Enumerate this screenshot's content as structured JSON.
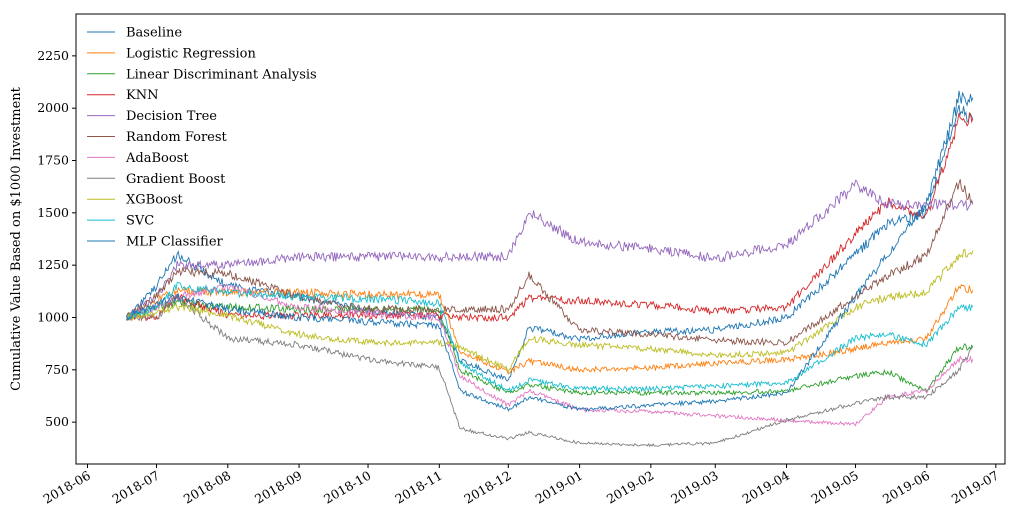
{
  "chart_data": {
    "type": "line",
    "title": "",
    "xlabel": "",
    "ylabel": "Cumulative Value Based on $1000 Investment",
    "xlim": [
      "2018-05-27",
      "2019-07-05"
    ],
    "ylim": [
      300,
      2450
    ],
    "x_ticks": [
      "2018-06-01",
      "2018-07-01",
      "2018-08-01",
      "2018-09-01",
      "2018-10-01",
      "2018-11-01",
      "2018-12-01",
      "2019-01-01",
      "2019-02-01",
      "2019-03-01",
      "2019-04-01",
      "2019-05-01",
      "2019-06-01",
      "2019-07-01"
    ],
    "x_tick_labels": [
      "2018-06",
      "2018-07",
      "2018-08",
      "2018-09",
      "2018-10",
      "2018-11",
      "2018-12",
      "2019-01",
      "2019-02",
      "2019-03",
      "2019-04",
      "2019-05",
      "2019-06",
      "2019-07"
    ],
    "y_ticks": [
      500,
      750,
      1000,
      1250,
      1500,
      1750,
      2000,
      2250
    ],
    "y_tick_labels": [
      "500",
      "750",
      "1000",
      "1250",
      "1500",
      "1750",
      "2000",
      "2250"
    ],
    "grid": false,
    "legend_position": "top-left",
    "series": [
      {
        "name": "Baseline",
        "color": "#1f77b4",
        "x": [
          "2018-06-18",
          "2018-07-01",
          "2018-07-10",
          "2018-08-01",
          "2018-09-01",
          "2018-10-01",
          "2018-11-01",
          "2018-11-10",
          "2018-12-01",
          "2018-12-10",
          "2019-01-01",
          "2019-02-01",
          "2019-03-01",
          "2019-04-01",
          "2019-05-01",
          "2019-05-15",
          "2019-06-01",
          "2019-06-15",
          "2019-06-21"
        ],
        "y": [
          1000,
          1150,
          1300,
          1150,
          1100,
          1030,
          1000,
          800,
          700,
          950,
          900,
          930,
          940,
          1000,
          1300,
          1450,
          1500,
          2000,
          1950
        ]
      },
      {
        "name": "Logistic Regression",
        "color": "#ff7f0e",
        "x": [
          "2018-06-18",
          "2018-07-01",
          "2018-07-10",
          "2018-08-01",
          "2018-09-01",
          "2018-10-01",
          "2018-11-01",
          "2018-11-10",
          "2018-12-01",
          "2018-12-10",
          "2019-01-01",
          "2019-02-01",
          "2019-03-01",
          "2019-04-01",
          "2019-05-01",
          "2019-05-15",
          "2019-06-01",
          "2019-06-15",
          "2019-06-21"
        ],
        "y": [
          1000,
          1080,
          1130,
          1120,
          1120,
          1110,
          1110,
          840,
          740,
          790,
          750,
          760,
          780,
          800,
          850,
          880,
          900,
          1150,
          1130
        ]
      },
      {
        "name": "Linear Discriminant Analysis",
        "color": "#2ca02c",
        "x": [
          "2018-06-18",
          "2018-07-01",
          "2018-07-10",
          "2018-08-01",
          "2018-09-01",
          "2018-10-01",
          "2018-11-01",
          "2018-11-10",
          "2018-12-01",
          "2018-12-10",
          "2019-01-01",
          "2019-02-01",
          "2019-03-01",
          "2019-04-01",
          "2019-05-01",
          "2019-05-15",
          "2019-06-01",
          "2019-06-15",
          "2019-06-21"
        ],
        "y": [
          1000,
          1050,
          1070,
          1050,
          1040,
          1040,
          1040,
          750,
          640,
          680,
          640,
          640,
          640,
          650,
          720,
          740,
          650,
          860,
          860
        ]
      },
      {
        "name": "KNN",
        "color": "#d62728",
        "x": [
          "2018-06-18",
          "2018-07-01",
          "2018-07-10",
          "2018-08-01",
          "2018-09-01",
          "2018-10-01",
          "2018-11-01",
          "2018-11-10",
          "2018-12-01",
          "2018-12-10",
          "2019-01-01",
          "2019-02-01",
          "2019-03-01",
          "2019-04-01",
          "2019-05-01",
          "2019-05-15",
          "2019-06-01",
          "2019-06-15",
          "2019-06-21"
        ],
        "y": [
          1000,
          1000,
          1100,
          1010,
          1010,
          1010,
          1010,
          1000,
          1000,
          1090,
          1080,
          1060,
          1030,
          1050,
          1400,
          1550,
          1480,
          1950,
          1950
        ]
      },
      {
        "name": "Decision Tree",
        "color": "#9467bd",
        "x": [
          "2018-06-18",
          "2018-07-01",
          "2018-07-10",
          "2018-08-01",
          "2018-09-01",
          "2018-10-01",
          "2018-11-01",
          "2018-11-10",
          "2018-12-01",
          "2018-12-10",
          "2019-01-01",
          "2019-02-01",
          "2019-03-01",
          "2019-04-01",
          "2019-05-01",
          "2019-05-15",
          "2019-06-01",
          "2019-06-15",
          "2019-06-21"
        ],
        "y": [
          1000,
          1100,
          1250,
          1250,
          1290,
          1290,
          1290,
          1290,
          1290,
          1500,
          1360,
          1330,
          1280,
          1350,
          1630,
          1540,
          1540,
          1540,
          1540
        ]
      },
      {
        "name": "Random Forest",
        "color": "#8c564b",
        "x": [
          "2018-06-18",
          "2018-07-01",
          "2018-07-10",
          "2018-08-01",
          "2018-09-01",
          "2018-10-01",
          "2018-11-01",
          "2018-11-10",
          "2018-12-01",
          "2018-12-10",
          "2019-01-01",
          "2019-02-01",
          "2019-03-01",
          "2019-04-01",
          "2019-05-01",
          "2019-05-15",
          "2019-06-01",
          "2019-06-15",
          "2019-06-21"
        ],
        "y": [
          1000,
          1100,
          1220,
          1210,
          1100,
          1040,
          1040,
          1040,
          1040,
          1200,
          940,
          920,
          890,
          880,
          1100,
          1200,
          1300,
          1650,
          1550
        ]
      },
      {
        "name": "AdaBoost",
        "color": "#e377c2",
        "x": [
          "2018-06-18",
          "2018-07-01",
          "2018-07-10",
          "2018-08-01",
          "2018-09-01",
          "2018-10-01",
          "2018-11-01",
          "2018-11-10",
          "2018-12-01",
          "2018-12-10",
          "2019-01-01",
          "2019-02-01",
          "2019-03-01",
          "2019-04-01",
          "2019-05-01",
          "2019-05-15",
          "2019-06-01",
          "2019-06-15",
          "2019-06-21"
        ],
        "y": [
          1000,
          1050,
          1100,
          1150,
          1050,
          1020,
          1000,
          720,
          580,
          650,
          560,
          550,
          530,
          510,
          490,
          620,
          650,
          800,
          800
        ]
      },
      {
        "name": "Gradient Boost",
        "color": "#7f7f7f",
        "x": [
          "2018-06-18",
          "2018-07-01",
          "2018-07-10",
          "2018-08-01",
          "2018-09-01",
          "2018-10-01",
          "2018-11-01",
          "2018-11-10",
          "2018-12-01",
          "2018-12-10",
          "2019-01-01",
          "2019-02-01",
          "2019-03-01",
          "2019-04-01",
          "2019-05-01",
          "2019-05-15",
          "2019-06-01",
          "2019-06-15",
          "2019-06-21"
        ],
        "y": [
          1000,
          1000,
          1100,
          900,
          870,
          800,
          760,
          470,
          420,
          450,
          400,
          390,
          400,
          510,
          590,
          620,
          620,
          750,
          860
        ]
      },
      {
        "name": "XGBoost",
        "color": "#bcbd22",
        "x": [
          "2018-06-18",
          "2018-07-01",
          "2018-07-10",
          "2018-08-01",
          "2018-09-01",
          "2018-10-01",
          "2018-11-01",
          "2018-11-10",
          "2018-12-01",
          "2018-12-10",
          "2019-01-01",
          "2019-02-01",
          "2019-03-01",
          "2019-04-01",
          "2019-05-01",
          "2019-05-15",
          "2019-06-01",
          "2019-06-15",
          "2019-06-21"
        ],
        "y": [
          1000,
          1020,
          1050,
          1010,
          920,
          880,
          880,
          860,
          750,
          900,
          870,
          850,
          820,
          830,
          1050,
          1100,
          1120,
          1300,
          1320
        ]
      },
      {
        "name": "SVC",
        "color": "#17becf",
        "x": [
          "2018-06-18",
          "2018-07-01",
          "2018-07-10",
          "2018-08-01",
          "2018-09-01",
          "2018-10-01",
          "2018-11-01",
          "2018-11-10",
          "2018-12-01",
          "2018-12-10",
          "2019-01-01",
          "2019-02-01",
          "2019-03-01",
          "2019-04-01",
          "2019-05-01",
          "2019-05-15",
          "2019-06-01",
          "2019-06-15",
          "2019-06-21"
        ],
        "y": [
          1000,
          1050,
          1150,
          1120,
          1100,
          1090,
          1070,
          780,
          650,
          700,
          660,
          660,
          670,
          690,
          900,
          920,
          870,
          1050,
          1050
        ]
      },
      {
        "name": "MLP Classifier",
        "color": "#1f77b4",
        "x": [
          "2018-06-18",
          "2018-07-01",
          "2018-07-10",
          "2018-08-01",
          "2018-09-01",
          "2018-10-01",
          "2018-11-01",
          "2018-11-10",
          "2018-12-01",
          "2018-12-10",
          "2019-01-01",
          "2019-02-01",
          "2019-03-01",
          "2019-04-01",
          "2019-05-01",
          "2019-05-15",
          "2019-06-01",
          "2019-06-15",
          "2019-06-21"
        ],
        "y": [
          1000,
          1060,
          1100,
          1040,
          1000,
          980,
          960,
          650,
          560,
          620,
          560,
          580,
          600,
          640,
          1100,
          1300,
          1550,
          2050,
          2050
        ]
      }
    ]
  }
}
